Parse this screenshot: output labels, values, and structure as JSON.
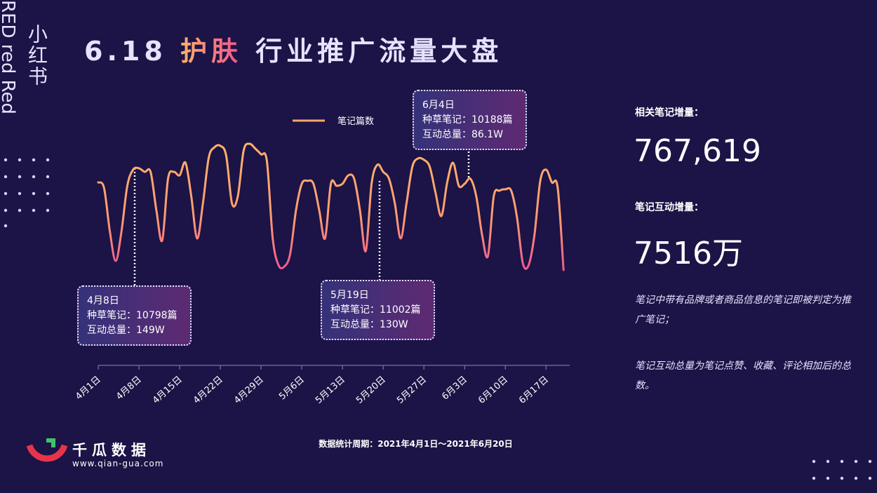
{
  "header": {
    "title_parts": [
      "6.18",
      "护肤",
      "行业推广流量大盘"
    ],
    "side_cn": "小红书",
    "side_en": "RED red Red"
  },
  "chart_data": {
    "type": "line",
    "categories": [
      "4月1日",
      null,
      null,
      null,
      null,
      null,
      null,
      "4月8日",
      null,
      null,
      null,
      null,
      null,
      null,
      "4月15日",
      null,
      null,
      null,
      null,
      null,
      null,
      "4月22日",
      null,
      null,
      null,
      null,
      null,
      null,
      "4月29日",
      null,
      null,
      null,
      null,
      null,
      null,
      "5月6日",
      null,
      null,
      null,
      null,
      null,
      null,
      "5月13日",
      null,
      null,
      null,
      null,
      null,
      null,
      "5月20日",
      null,
      null,
      null,
      null,
      null,
      null,
      "5月27日",
      null,
      null,
      null,
      null,
      null,
      null,
      "6月3日",
      null,
      null,
      null,
      null,
      null,
      null,
      "6月10日",
      null,
      null,
      null,
      null,
      null,
      null,
      "6月17日",
      null,
      null,
      null
    ],
    "series": [
      {
        "name": "笔记篇数",
        "color": "#ffa66b",
        "values": [
          9980,
          9660,
          7140,
          5430,
          7140,
          9780,
          10720,
          10798,
          10590,
          10590,
          8360,
          6610,
          10190,
          10590,
          10390,
          11120,
          9170,
          6730,
          8760,
          11410,
          12020,
          12100,
          11530,
          8760,
          9170,
          11820,
          12220,
          11940,
          11610,
          11210,
          6730,
          5180,
          5100,
          5830,
          8360,
          9900,
          10070,
          9900,
          8360,
          6730,
          9900,
          9780,
          9900,
          10390,
          10190,
          8360,
          6000,
          9900,
          11002,
          10590,
          10190,
          8760,
          6730,
          8760,
          10880,
          11370,
          11290,
          10880,
          9370,
          8030,
          9980,
          11120,
          9780,
          9900,
          10188,
          9170,
          6930,
          5710,
          9170,
          9500,
          9580,
          9500,
          7950,
          5300,
          5180,
          6930,
          10070,
          10720,
          9980,
          9660,
          4900
        ]
      }
    ],
    "annotations": [
      {
        "date": "4月8日",
        "notes": "种草笔记：10798篇",
        "interaction": "互动总量：149W"
      },
      {
        "date": "5月19日",
        "notes": "种草笔记：11002篇",
        "interaction": "互动总量：130W"
      },
      {
        "date": "6月4日",
        "notes": "种草笔记：10188篇",
        "interaction": "互动总量：86.1W"
      }
    ],
    "legend": "top"
  },
  "stats": [
    {
      "label": "相关笔记增量：",
      "value": "767,619"
    },
    {
      "label": "笔记互动增量：",
      "value": "7516万"
    }
  ],
  "notes": [
    "笔记中带有品牌或者商品信息的笔记即被判定为推广笔记；",
    "笔记互动总量为笔记点赞、收藏、评论相加后的总数。"
  ],
  "footer": "数据统计周期：2021年4月1日～2021年6月20日",
  "brand": {
    "name": "千瓜数据",
    "url": "www.qian-gua.com"
  }
}
